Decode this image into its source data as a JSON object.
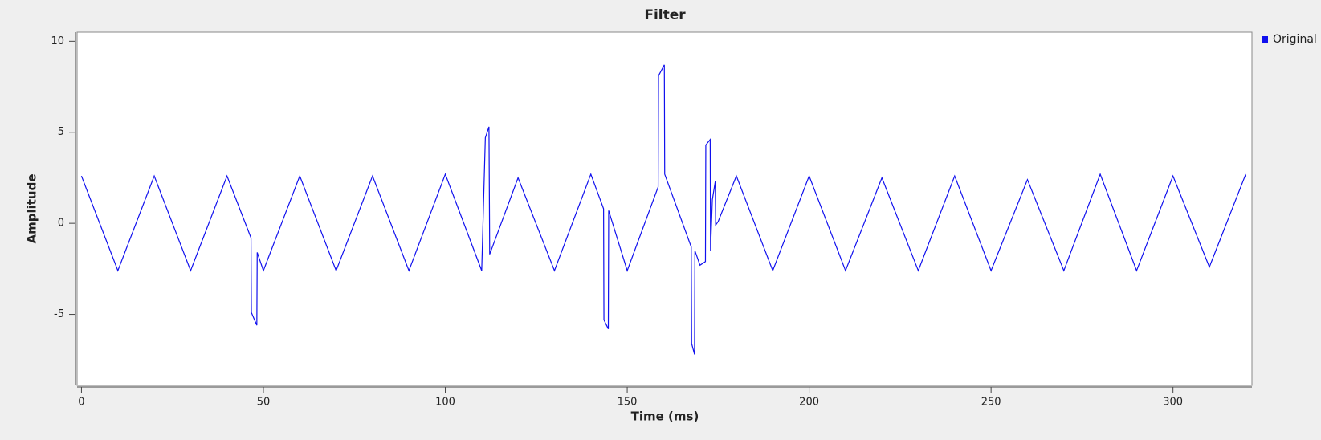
{
  "chart_data": {
    "type": "line",
    "title": "Filter",
    "x_label": "Time (ms)",
    "y_label": "Amplitude",
    "x": [
      0,
      10,
      20,
      30,
      40,
      46.6,
      46.7,
      48.2,
      48.3,
      50,
      60,
      70,
      80,
      90,
      100,
      110,
      111,
      112,
      112.2,
      120,
      130,
      140,
      143.5,
      143.6,
      144.8,
      144.9,
      150,
      158.5,
      158.6,
      160.2,
      160.3,
      167.6,
      167.7,
      168.5,
      168.6,
      170,
      171.5,
      171.6,
      172.8,
      172.9,
      173.4,
      174.2,
      174.3,
      175,
      180,
      190,
      200,
      210,
      220,
      230,
      240,
      250,
      260,
      270,
      280,
      290,
      300,
      310,
      320
    ],
    "series": [
      {
        "name": "Original",
        "color": "#1010ee",
        "values": [
          2.6,
          -2.6,
          2.6,
          -2.6,
          2.6,
          -0.8,
          -4.9,
          -5.6,
          -1.6,
          -2.6,
          2.6,
          -2.6,
          2.6,
          -2.6,
          2.7,
          -2.6,
          4.7,
          5.3,
          -1.7,
          2.5,
          -2.6,
          2.7,
          0.8,
          -5.3,
          -5.8,
          0.7,
          -2.6,
          2.0,
          8.1,
          8.7,
          2.7,
          -1.3,
          -6.6,
          -7.2,
          -1.5,
          -2.3,
          -2.1,
          4.3,
          4.6,
          -1.5,
          1.3,
          2.3,
          -0.1,
          0.1,
          2.6,
          -2.6,
          2.6,
          -2.6,
          2.5,
          -2.6,
          2.6,
          -2.6,
          2.4,
          -2.6,
          2.7,
          -2.6,
          2.6,
          -2.4,
          2.7
        ]
      }
    ],
    "xlim": [
      -1.2,
      321.7
    ],
    "ylim": [
      -8.9,
      10.5
    ],
    "xticks": [
      0,
      50,
      100,
      150,
      200,
      250,
      300
    ],
    "yticks": [
      -5,
      0,
      5,
      10
    ],
    "legend": "right"
  }
}
